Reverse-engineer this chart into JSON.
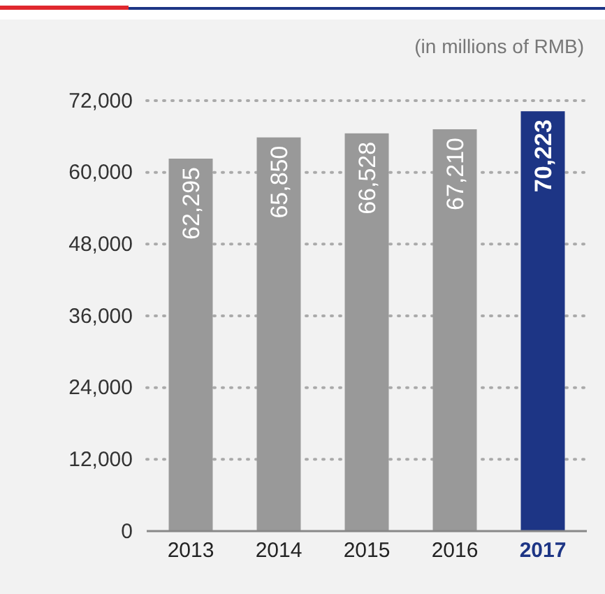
{
  "chart_data": {
    "type": "bar",
    "annotations": [
      "(in millions of RMB)"
    ],
    "categories": [
      "2013",
      "2014",
      "2015",
      "2016",
      "2017"
    ],
    "values": [
      62295,
      65850,
      66528,
      67210,
      70223
    ],
    "colors": [
      "#999999",
      "#999999",
      "#999999",
      "#999999",
      "#1d3585"
    ],
    "ylim": [
      0,
      72000
    ],
    "yticks": [
      {
        "value": 0,
        "label": "0"
      },
      {
        "value": 12000,
        "label": "12,000"
      },
      {
        "value": 24000,
        "label": "24,000"
      },
      {
        "value": 36000,
        "label": "36,000"
      },
      {
        "value": 48000,
        "label": "48,000"
      },
      {
        "value": 60000,
        "label": "60,000"
      },
      {
        "value": 72000,
        "label": "72,000"
      }
    ],
    "value_labels": [
      "62,295",
      "65,850",
      "66,528",
      "67,210",
      "70,223"
    ],
    "grid": "y"
  }
}
